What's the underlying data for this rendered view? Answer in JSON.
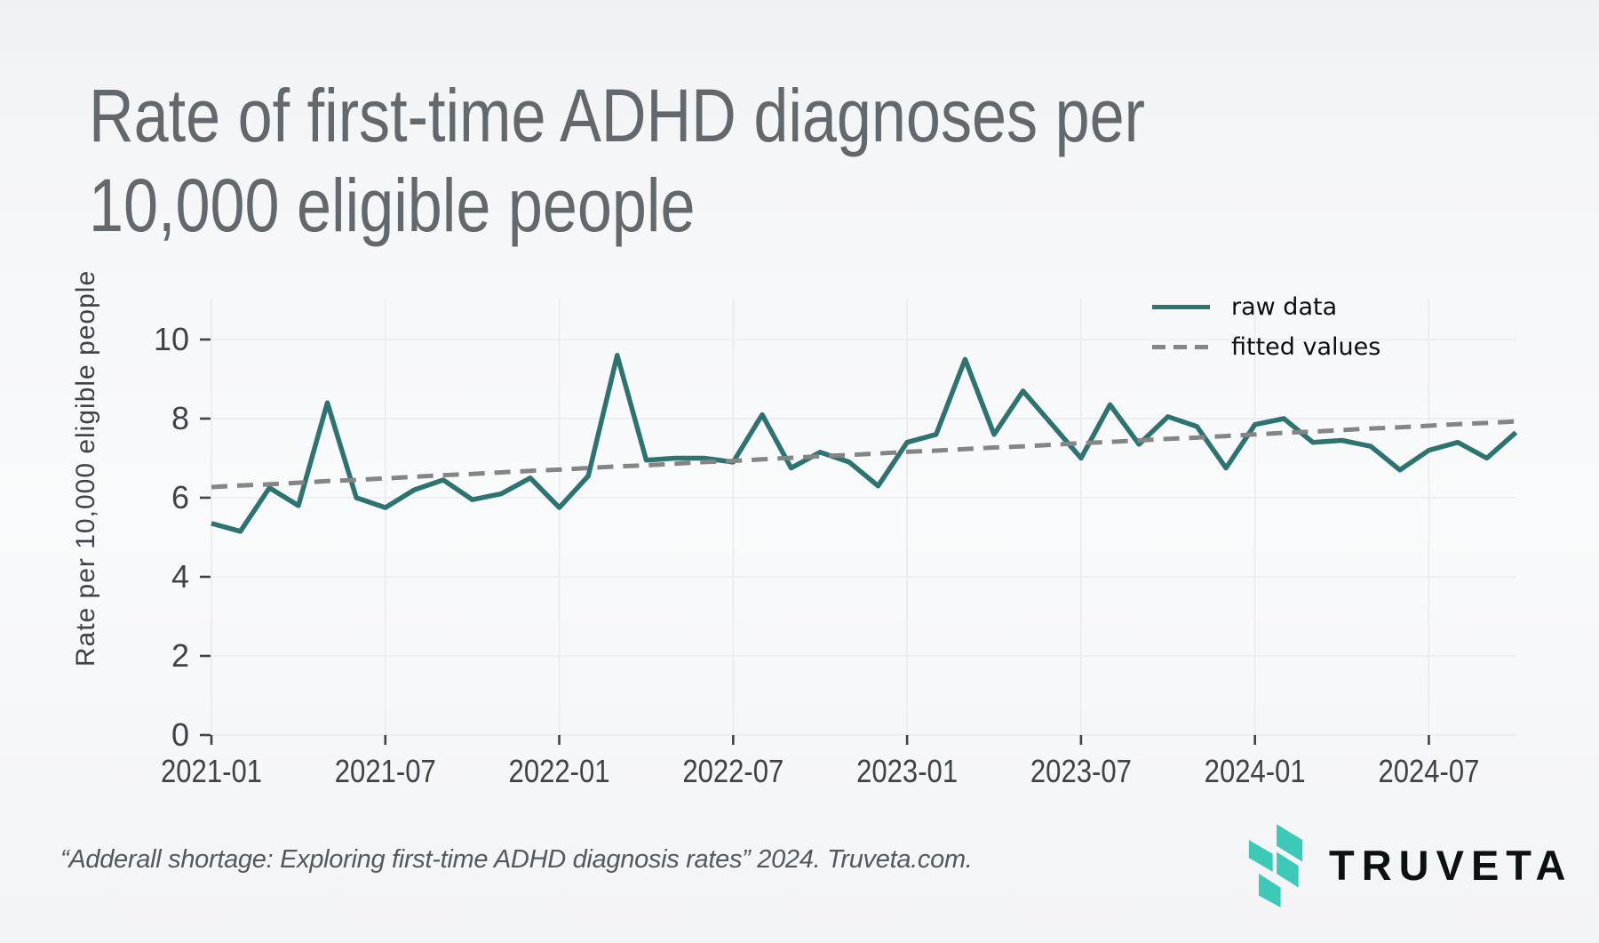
{
  "title": {
    "line1": "Rate of first-time ADHD diagnoses per",
    "line2": "10,000 eligible people"
  },
  "chart_data": {
    "type": "line",
    "title": "Rate of first-time ADHD diagnoses per 10,000 eligible people",
    "xlabel": "",
    "ylabel": "Rate per 10,000 eligible people",
    "x": [
      "2021-01",
      "2021-02",
      "2021-03",
      "2021-04",
      "2021-05",
      "2021-06",
      "2021-07",
      "2021-08",
      "2021-09",
      "2021-10",
      "2021-11",
      "2021-12",
      "2022-01",
      "2022-02",
      "2022-03",
      "2022-04",
      "2022-05",
      "2022-06",
      "2022-07",
      "2022-08",
      "2022-09",
      "2022-10",
      "2022-11",
      "2022-12",
      "2023-01",
      "2023-02",
      "2023-03",
      "2023-04",
      "2023-05",
      "2023-06",
      "2023-07",
      "2023-08",
      "2023-09",
      "2023-10",
      "2023-11",
      "2023-12",
      "2024-01",
      "2024-02",
      "2024-03",
      "2024-04",
      "2024-05",
      "2024-06",
      "2024-07",
      "2024-08",
      "2024-09",
      "2024-10"
    ],
    "series": [
      {
        "name": "raw data",
        "style": "solid",
        "color": "#2d7471",
        "values": [
          5.35,
          5.15,
          6.25,
          5.8,
          8.4,
          6.0,
          5.75,
          6.2,
          6.45,
          5.95,
          6.1,
          6.5,
          5.75,
          6.55,
          9.6,
          6.95,
          7.0,
          7.0,
          6.9,
          8.1,
          6.75,
          7.15,
          6.9,
          6.3,
          7.4,
          7.6,
          9.5,
          7.6,
          8.7,
          7.85,
          7.0,
          8.35,
          7.35,
          8.05,
          7.8,
          6.75,
          7.85,
          8.0,
          7.4,
          7.45,
          7.3,
          6.7,
          7.2,
          7.4,
          7.0,
          7.65
        ]
      },
      {
        "name": "fitted values",
        "style": "dashed",
        "color": "#858585",
        "values": [
          6.27,
          6.31,
          6.34,
          6.38,
          6.42,
          6.45,
          6.49,
          6.53,
          6.57,
          6.6,
          6.64,
          6.68,
          6.71,
          6.75,
          6.79,
          6.82,
          6.86,
          6.9,
          6.93,
          6.97,
          7.01,
          7.05,
          7.08,
          7.12,
          7.16,
          7.19,
          7.23,
          7.27,
          7.3,
          7.34,
          7.38,
          7.41,
          7.45,
          7.49,
          7.52,
          7.56,
          7.6,
          7.64,
          7.67,
          7.71,
          7.75,
          7.78,
          7.82,
          7.86,
          7.89,
          7.93
        ]
      }
    ],
    "ylim": [
      0,
      11.0
    ],
    "yticks": [
      0,
      2,
      4,
      6,
      8,
      10
    ],
    "x_tick_labels": [
      "2021-01",
      "2021-07",
      "2022-01",
      "2022-07",
      "2023-01",
      "2023-07",
      "2024-01",
      "2024-07"
    ],
    "x_tick_indices": [
      0,
      6,
      12,
      18,
      24,
      30,
      36,
      42
    ],
    "grid": true,
    "legend_position": "top-right"
  },
  "footer": {
    "citation": "“Adderall shortage: Exploring first-time ADHD diagnosis rates” 2024. Truveta.com.",
    "logo_text": "TRUVETA"
  },
  "colors": {
    "raw_line": "#2d7471",
    "fitted_line": "#858585",
    "logo_teal": "#3cc9b8",
    "title_text": "#63686c",
    "axis_text": "#3f4347",
    "gridline": "#e9ebec"
  }
}
